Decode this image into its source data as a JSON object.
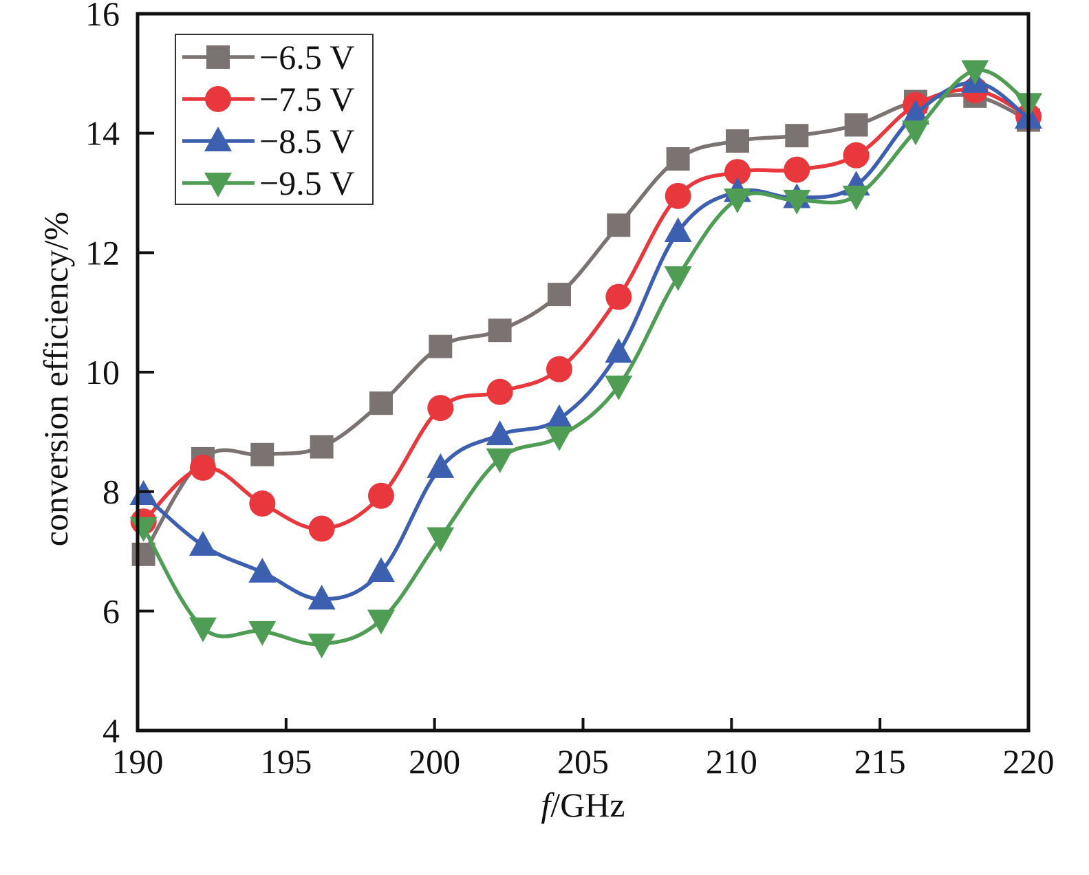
{
  "chart_data": {
    "type": "line",
    "title": "",
    "xlabel_italic": "f",
    "xlabel_rest": "/GHz",
    "ylabel": "conversion efficiency/%",
    "xlim": [
      190,
      220
    ],
    "ylim": [
      4,
      16
    ],
    "xticks": [
      190,
      195,
      200,
      205,
      210,
      215,
      220
    ],
    "yticks": [
      4,
      6,
      8,
      10,
      12,
      14,
      16
    ],
    "grid": false,
    "legend_position": "top-left",
    "x": [
      190.2,
      192.2,
      194.2,
      196.2,
      198.2,
      200.2,
      202.2,
      204.2,
      206.2,
      208.2,
      210.2,
      212.2,
      214.2,
      216.2,
      218.2,
      220
    ],
    "series": [
      {
        "name": "−6.5 V",
        "marker": "square",
        "color": "#7b7372",
        "values": [
          6.95,
          8.55,
          8.62,
          8.75,
          9.48,
          10.43,
          10.7,
          11.3,
          12.46,
          13.57,
          13.87,
          13.96,
          14.14,
          14.53,
          14.62,
          14.22
        ]
      },
      {
        "name": "−7.5 V",
        "marker": "circle",
        "color": "#e8383d",
        "values": [
          7.5,
          8.4,
          7.8,
          7.38,
          7.93,
          9.4,
          9.67,
          10.05,
          11.26,
          12.95,
          13.35,
          13.39,
          13.63,
          14.47,
          14.72,
          14.28
        ]
      },
      {
        "name": "−8.5 V",
        "marker": "triangle-up",
        "color": "#3d5fb0",
        "values": [
          7.95,
          7.1,
          6.65,
          6.2,
          6.66,
          8.4,
          8.95,
          9.22,
          10.33,
          12.35,
          13.02,
          12.92,
          13.13,
          14.32,
          14.85,
          14.25
        ]
      },
      {
        "name": "−9.5 V",
        "marker": "triangle-down",
        "color": "#4f9d55",
        "values": [
          7.4,
          5.72,
          5.66,
          5.45,
          5.85,
          7.23,
          8.55,
          8.92,
          9.77,
          11.6,
          12.9,
          12.88,
          12.95,
          14.04,
          15.05,
          14.5
        ]
      }
    ]
  }
}
